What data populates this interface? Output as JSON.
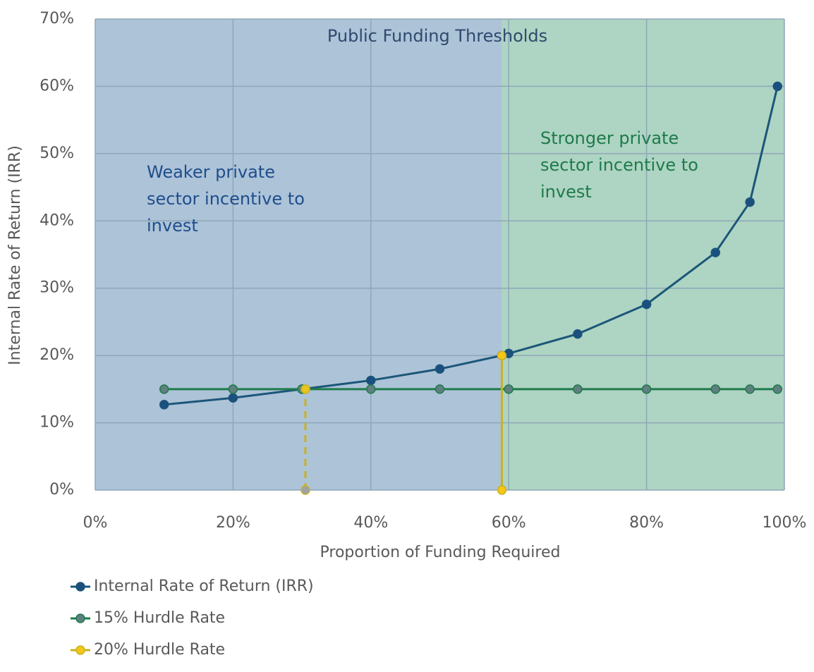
{
  "chart_data": {
    "type": "line",
    "xlabel": "Proportion of Funding Required",
    "ylabel": "Internal Rate of Return (IRR)",
    "xlim": [
      0,
      100
    ],
    "ylim": [
      0,
      70
    ],
    "xticks": [
      {
        "value": 0,
        "label": "0%"
      },
      {
        "value": 20,
        "label": "20%"
      },
      {
        "value": 40,
        "label": "40%"
      },
      {
        "value": 60,
        "label": "60%"
      },
      {
        "value": 80,
        "label": "80%"
      },
      {
        "value": 100,
        "label": "100%"
      }
    ],
    "yticks": [
      {
        "value": 0,
        "label": "0%"
      },
      {
        "value": 10,
        "label": "10%"
      },
      {
        "value": 20,
        "label": "20%"
      },
      {
        "value": 30,
        "label": "30%"
      },
      {
        "value": 40,
        "label": "40%"
      },
      {
        "value": 50,
        "label": "50%"
      },
      {
        "value": 60,
        "label": "60%"
      },
      {
        "value": 70,
        "label": "70%"
      }
    ],
    "grid": true,
    "regions": [
      {
        "x": [
          0,
          59
        ],
        "color": "#adc3d8"
      },
      {
        "x": [
          59,
          100
        ],
        "color": "#aed4c3"
      }
    ],
    "annotations": [
      {
        "lines": [
          "Public Funding Thresholds"
        ],
        "color": "#2e4a6e"
      },
      {
        "lines": [
          "Weaker private",
          "sector incentive to",
          "invest"
        ],
        "color": "#1f4e8c"
      },
      {
        "lines": [
          "Stronger private",
          "sector incentive to",
          "invest"
        ],
        "color": "#1e7b4a"
      }
    ],
    "series": [
      {
        "name": "Internal Rate of Return (IRR)",
        "color": "#1b5679",
        "marker": "#1b4f80",
        "x": [
          10,
          20,
          30,
          40,
          50,
          59,
          60,
          70,
          80,
          90,
          95,
          99
        ],
        "values": [
          12.7,
          13.7,
          15,
          16.3,
          18,
          20,
          20.3,
          23.2,
          27.6,
          35.3,
          42.8,
          60
        ]
      },
      {
        "name": "15% Hurdle Rate",
        "color": "#1e7b4a",
        "marker": "#5f7f80",
        "x": [
          10,
          20,
          30,
          40,
          50,
          60,
          70,
          80,
          90,
          95,
          99
        ],
        "values": [
          15,
          15,
          15,
          15,
          15,
          15,
          15,
          15,
          15,
          15,
          15
        ]
      },
      {
        "name": "20% Hurdle Rate",
        "color": "#c9b21e",
        "marker": "#f5c518",
        "x": [
          59,
          59
        ],
        "values": [
          0,
          20
        ]
      },
      {
        "color": "#c9b21e",
        "marker": "#9ea3a8",
        "dashed": true,
        "x": [
          30.5,
          30.5
        ],
        "values": [
          0,
          15
        ]
      }
    ]
  }
}
